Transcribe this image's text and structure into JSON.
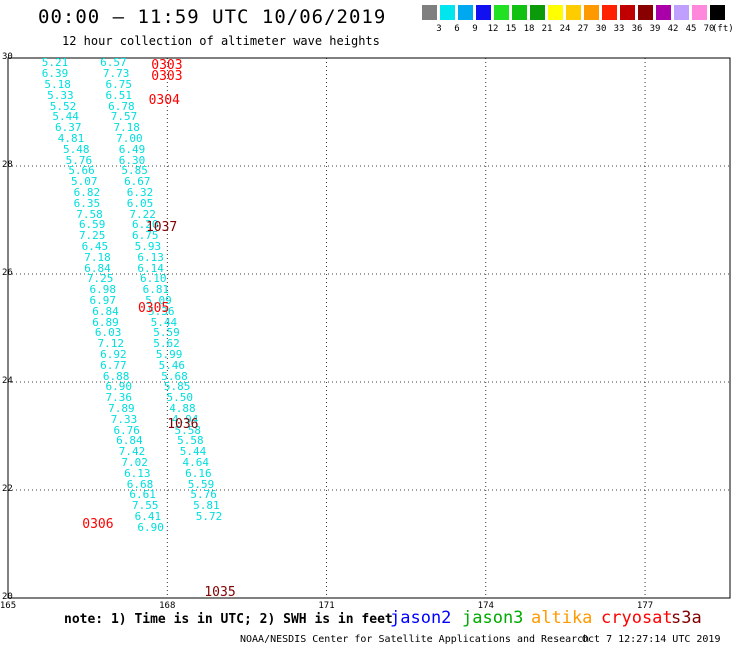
{
  "header": {
    "title": "00:00 – 11:59 UTC 10/06/2019",
    "subtitle": "12 hour collection of altimeter wave heights"
  },
  "legend": {
    "unit": "(ft)",
    "bins": [
      {
        "label": "3",
        "color": "#7f7f7f"
      },
      {
        "label": "6",
        "color": "#00e5ee"
      },
      {
        "label": "9",
        "color": "#00a8f0"
      },
      {
        "label": "12",
        "color": "#1010f0"
      },
      {
        "label": "15",
        "color": "#22e022"
      },
      {
        "label": "18",
        "color": "#12c212"
      },
      {
        "label": "21",
        "color": "#0a9a0a"
      },
      {
        "label": "24",
        "color": "#ffff00"
      },
      {
        "label": "27",
        "color": "#ffcc00"
      },
      {
        "label": "30",
        "color": "#ff9900"
      },
      {
        "label": "33",
        "color": "#ff2200"
      },
      {
        "label": "36",
        "color": "#c00000"
      },
      {
        "label": "39",
        "color": "#880000"
      },
      {
        "label": "42",
        "color": "#aa00aa"
      },
      {
        "label": "45",
        "color": "#c0a0ff"
      },
      {
        "label": "70",
        "color": "#ff88dd"
      },
      {
        "label": "",
        "color": "#000000"
      }
    ]
  },
  "map": {
    "lat_ticks": [
      {
        "label": "30",
        "lat": 30
      },
      {
        "label": "28",
        "lat": 28
      },
      {
        "label": "26",
        "lat": 26
      },
      {
        "label": "24",
        "lat": 24
      },
      {
        "label": "22",
        "lat": 22
      },
      {
        "label": "20",
        "lat": 20
      }
    ],
    "lon_ticks": [
      {
        "label": "165",
        "lon": 165
      },
      {
        "label": "168",
        "lon": 168
      },
      {
        "label": "171",
        "lon": 171
      },
      {
        "label": "174",
        "lon": 174
      },
      {
        "label": "177",
        "lon": 177
      }
    ],
    "pass_labels": [
      {
        "text": "0303",
        "lon": 168.0,
        "lat": 29.85,
        "color": "#ff0000"
      },
      {
        "text": "0303",
        "lon": 168.0,
        "lat": 29.65,
        "color": "#ff0000"
      },
      {
        "text": "0304",
        "lon": 167.95,
        "lat": 29.2,
        "color": "#ff0000"
      },
      {
        "text": "1037",
        "lon": 167.9,
        "lat": 26.85,
        "color": "#800000"
      },
      {
        "text": "0305",
        "lon": 167.75,
        "lat": 25.35,
        "color": "#ff0000"
      },
      {
        "text": "1036",
        "lon": 168.3,
        "lat": 23.2,
        "color": "#800000"
      },
      {
        "text": "0306",
        "lon": 166.7,
        "lat": 21.35,
        "color": "#ff0000"
      },
      {
        "text": "1035",
        "lon": 169.0,
        "lat": 20.1,
        "color": "#800000"
      }
    ],
    "tracks": [
      {
        "name": "cryosat",
        "points": [
          {
            "v": "5.21",
            "lon": 165.9,
            "lat": 29.9
          },
          {
            "v": "6.39",
            "lon": 165.9,
            "lat": 29.7
          },
          {
            "v": "5.18",
            "lon": 165.95,
            "lat": 29.5
          },
          {
            "v": "5.33",
            "lon": 166.0,
            "lat": 29.3
          },
          {
            "v": "5.52",
            "lon": 166.05,
            "lat": 29.1
          },
          {
            "v": "5.44",
            "lon": 166.1,
            "lat": 28.9
          },
          {
            "v": "6.37",
            "lon": 166.15,
            "lat": 28.7
          },
          {
            "v": "4.81",
            "lon": 166.2,
            "lat": 28.5
          },
          {
            "v": "5.48",
            "lon": 166.3,
            "lat": 28.3
          },
          {
            "v": "5.76",
            "lon": 166.35,
            "lat": 28.1
          },
          {
            "v": "5.66",
            "lon": 166.4,
            "lat": 27.9
          },
          {
            "v": "5.07",
            "lon": 166.45,
            "lat": 27.7
          },
          {
            "v": "6.82",
            "lon": 166.5,
            "lat": 27.5
          },
          {
            "v": "6.35",
            "lon": 166.5,
            "lat": 27.3
          },
          {
            "v": "7.58",
            "lon": 166.55,
            "lat": 27.1
          },
          {
            "v": "6.59",
            "lon": 166.6,
            "lat": 26.9
          },
          {
            "v": "7.25",
            "lon": 166.6,
            "lat": 26.7
          },
          {
            "v": "6.45",
            "lon": 166.65,
            "lat": 26.5
          },
          {
            "v": "7.18",
            "lon": 166.7,
            "lat": 26.3
          },
          {
            "v": "6.84",
            "lon": 166.7,
            "lat": 26.1
          },
          {
            "v": "7.25",
            "lon": 166.75,
            "lat": 25.9
          },
          {
            "v": "6.98",
            "lon": 166.8,
            "lat": 25.7
          },
          {
            "v": "6.97",
            "lon": 166.8,
            "lat": 25.5
          },
          {
            "v": "6.84",
            "lon": 166.85,
            "lat": 25.3
          },
          {
            "v": "6.89",
            "lon": 166.85,
            "lat": 25.1
          },
          {
            "v": "6.03",
            "lon": 166.9,
            "lat": 24.9
          },
          {
            "v": "7.12",
            "lon": 166.95,
            "lat": 24.7
          },
          {
            "v": "6.92",
            "lon": 167.0,
            "lat": 24.5
          },
          {
            "v": "6.77",
            "lon": 167.0,
            "lat": 24.3
          },
          {
            "v": "6.88",
            "lon": 167.05,
            "lat": 24.1
          },
          {
            "v": "6.90",
            "lon": 167.1,
            "lat": 23.9
          },
          {
            "v": "7.36",
            "lon": 167.1,
            "lat": 23.7
          },
          {
            "v": "7.89",
            "lon": 167.15,
            "lat": 23.5
          },
          {
            "v": "7.33",
            "lon": 167.2,
            "lat": 23.3
          },
          {
            "v": "6.76",
            "lon": 167.25,
            "lat": 23.1
          },
          {
            "v": "6.84",
            "lon": 167.3,
            "lat": 22.9
          },
          {
            "v": "7.42",
            "lon": 167.35,
            "lat": 22.7
          },
          {
            "v": "7.02",
            "lon": 167.4,
            "lat": 22.5
          },
          {
            "v": "6.13",
            "lon": 167.45,
            "lat": 22.3
          },
          {
            "v": "6.68",
            "lon": 167.5,
            "lat": 22.1
          },
          {
            "v": "6.61",
            "lon": 167.55,
            "lat": 21.9
          },
          {
            "v": "7.55",
            "lon": 167.6,
            "lat": 21.7
          },
          {
            "v": "6.41",
            "lon": 167.65,
            "lat": 21.5
          },
          {
            "v": "6.90",
            "lon": 167.7,
            "lat": 21.3
          }
        ]
      },
      {
        "name": "s3a",
        "points": [
          {
            "v": "6.57",
            "lon": 167.0,
            "lat": 29.9
          },
          {
            "v": "7.73",
            "lon": 167.05,
            "lat": 29.7
          },
          {
            "v": "6.75",
            "lon": 167.1,
            "lat": 29.5
          },
          {
            "v": "6.51",
            "lon": 167.1,
            "lat": 29.3
          },
          {
            "v": "6.78",
            "lon": 167.15,
            "lat": 29.1
          },
          {
            "v": "7.57",
            "lon": 167.2,
            "lat": 28.9
          },
          {
            "v": "7.18",
            "lon": 167.25,
            "lat": 28.7
          },
          {
            "v": "7.00",
            "lon": 167.3,
            "lat": 28.5
          },
          {
            "v": "6.49",
            "lon": 167.35,
            "lat": 28.3
          },
          {
            "v": "6.30",
            "lon": 167.35,
            "lat": 28.1
          },
          {
            "v": "5.85",
            "lon": 167.4,
            "lat": 27.9
          },
          {
            "v": "6.67",
            "lon": 167.45,
            "lat": 27.7
          },
          {
            "v": "6.32",
            "lon": 167.5,
            "lat": 27.5
          },
          {
            "v": "6.05",
            "lon": 167.5,
            "lat": 27.3
          },
          {
            "v": "7.22",
            "lon": 167.55,
            "lat": 27.1
          },
          {
            "v": "6.20",
            "lon": 167.6,
            "lat": 26.9
          },
          {
            "v": "6.75",
            "lon": 167.6,
            "lat": 26.7
          },
          {
            "v": "5.93",
            "lon": 167.65,
            "lat": 26.5
          },
          {
            "v": "6.13",
            "lon": 167.7,
            "lat": 26.3
          },
          {
            "v": "6.14",
            "lon": 167.7,
            "lat": 26.1
          },
          {
            "v": "6.10",
            "lon": 167.75,
            "lat": 25.9
          },
          {
            "v": "6.81",
            "lon": 167.8,
            "lat": 25.7
          },
          {
            "v": "5.09",
            "lon": 167.85,
            "lat": 25.5
          },
          {
            "v": "5.36",
            "lon": 167.9,
            "lat": 25.3
          },
          {
            "v": "5.44",
            "lon": 167.95,
            "lat": 25.1
          },
          {
            "v": "5.59",
            "lon": 168.0,
            "lat": 24.9
          },
          {
            "v": "5.62",
            "lon": 168.0,
            "lat": 24.7
          },
          {
            "v": "5.99",
            "lon": 168.05,
            "lat": 24.5
          },
          {
            "v": "5.46",
            "lon": 168.1,
            "lat": 24.3
          },
          {
            "v": "5.68",
            "lon": 168.15,
            "lat": 24.1
          },
          {
            "v": "5.85",
            "lon": 168.2,
            "lat": 23.9
          },
          {
            "v": "5.50",
            "lon": 168.25,
            "lat": 23.7
          },
          {
            "v": "4.88",
            "lon": 168.3,
            "lat": 23.5
          },
          {
            "v": "4.94",
            "lon": 168.35,
            "lat": 23.3
          },
          {
            "v": "5.58",
            "lon": 168.4,
            "lat": 23.1
          },
          {
            "v": "5.58",
            "lon": 168.45,
            "lat": 22.9
          },
          {
            "v": "5.44",
            "lon": 168.5,
            "lat": 22.7
          },
          {
            "v": "4.64",
            "lon": 168.55,
            "lat": 22.5
          },
          {
            "v": "6.16",
            "lon": 168.6,
            "lat": 22.3
          },
          {
            "v": "5.59",
            "lon": 168.65,
            "lat": 22.1
          },
          {
            "v": "5.76",
            "lon": 168.7,
            "lat": 21.9
          },
          {
            "v": "5.81",
            "lon": 168.75,
            "lat": 21.7
          },
          {
            "v": "5.72",
            "lon": 168.8,
            "lat": 21.5
          }
        ]
      }
    ]
  },
  "footer": {
    "note": "note: 1) Time is in UTC; 2) SWH is in feet",
    "satellites": [
      {
        "label": "jason2",
        "color": "#0000ff"
      },
      {
        "label": "jason3",
        "color": "#00aa00"
      },
      {
        "label": "altika",
        "color": "#ff9900"
      },
      {
        "label": "cryosat",
        "color": "#ff0000"
      },
      {
        "label": "s3a",
        "color": "#800000"
      }
    ],
    "credit": "NOAA/NESDIS Center for Satellite Applications and Research",
    "timestamp": "Oct  7 12:27:14 UTC 2019"
  }
}
